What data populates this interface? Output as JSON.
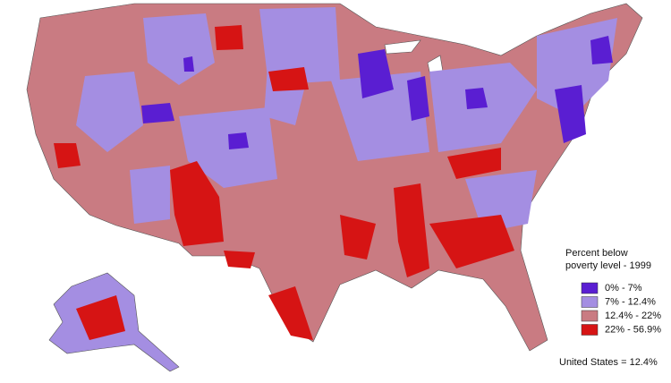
{
  "legend": {
    "title_lines": [
      "Percent below",
      "poverty level - 1999"
    ],
    "items": [
      {
        "label": "0% - 7%",
        "color": "#5a1ed2"
      },
      {
        "label": "7% - 12.4%",
        "color": "#a48ee2"
      },
      {
        "label": "12.4% - 22%",
        "color": "#c97b82"
      },
      {
        "label": "22% - 56.9%",
        "color": "#d61414"
      }
    ]
  },
  "footer": "United States = 12.4%"
}
